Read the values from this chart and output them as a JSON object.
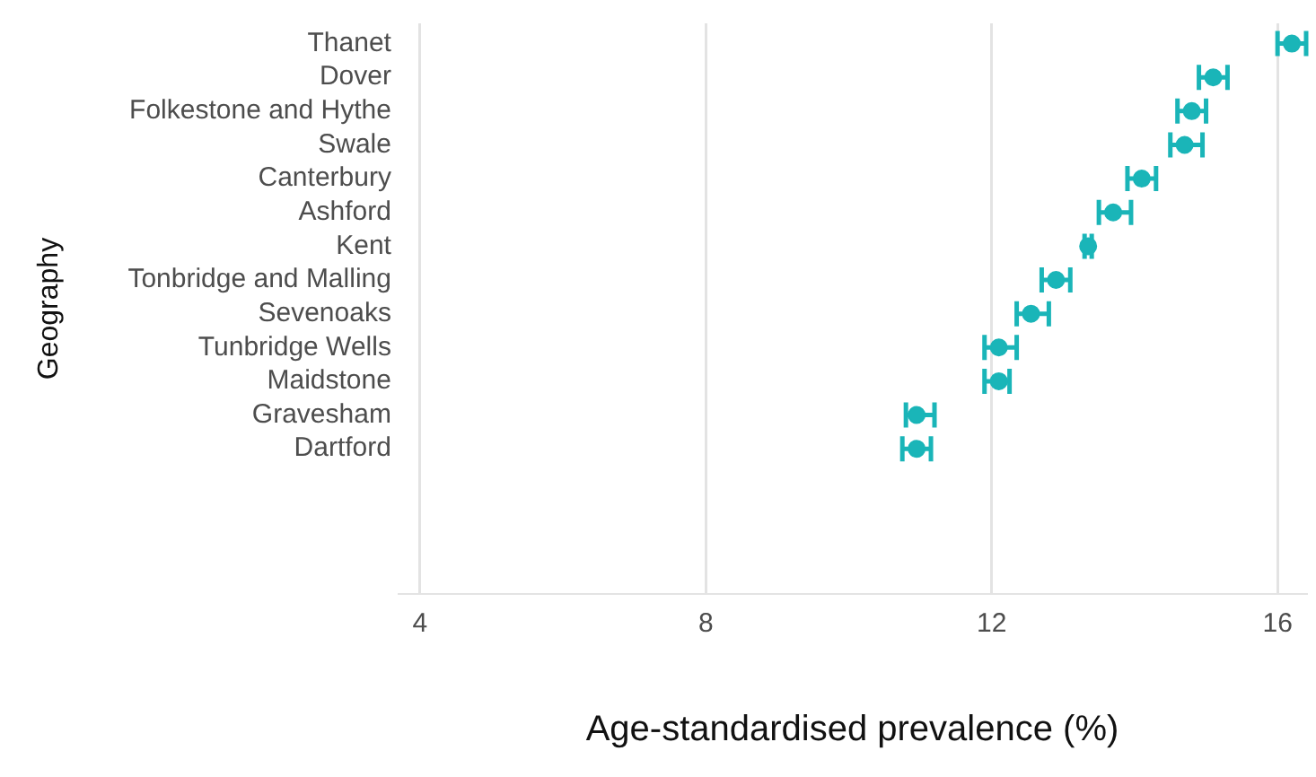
{
  "chart_data": {
    "type": "scatter",
    "orientation": "horizontal",
    "xlabel": "Age-standardised prevalence (%)",
    "ylabel": "Geography",
    "categories": [
      "Thanet",
      "Dover",
      "Folkestone and Hythe",
      "Swale",
      "Canterbury",
      "Ashford",
      "Kent",
      "Tonbridge and Malling",
      "Sevenoaks",
      "Tunbridge Wells",
      "Maidstone",
      "Gravesham",
      "Dartford"
    ],
    "values": [
      16.2,
      15.1,
      14.8,
      14.7,
      14.1,
      13.7,
      13.35,
      12.9,
      12.55,
      12.1,
      12.1,
      10.95,
      10.95
    ],
    "errors": [
      [
        16.0,
        16.4
      ],
      [
        14.9,
        15.3
      ],
      [
        14.6,
        15.0
      ],
      [
        14.5,
        14.95
      ],
      [
        13.9,
        14.3
      ],
      [
        13.5,
        13.95
      ],
      [
        13.3,
        13.4
      ],
      [
        12.7,
        13.1
      ],
      [
        12.35,
        12.8
      ],
      [
        11.9,
        12.35
      ],
      [
        11.9,
        12.25
      ],
      [
        10.8,
        11.2
      ],
      [
        10.75,
        11.15
      ]
    ],
    "color": "#1ab5b8",
    "marker": "circle",
    "grid": "x",
    "legend": false,
    "xlim": [
      3.7,
      16.4
    ],
    "xticks": [
      4,
      8,
      12,
      16
    ]
  }
}
